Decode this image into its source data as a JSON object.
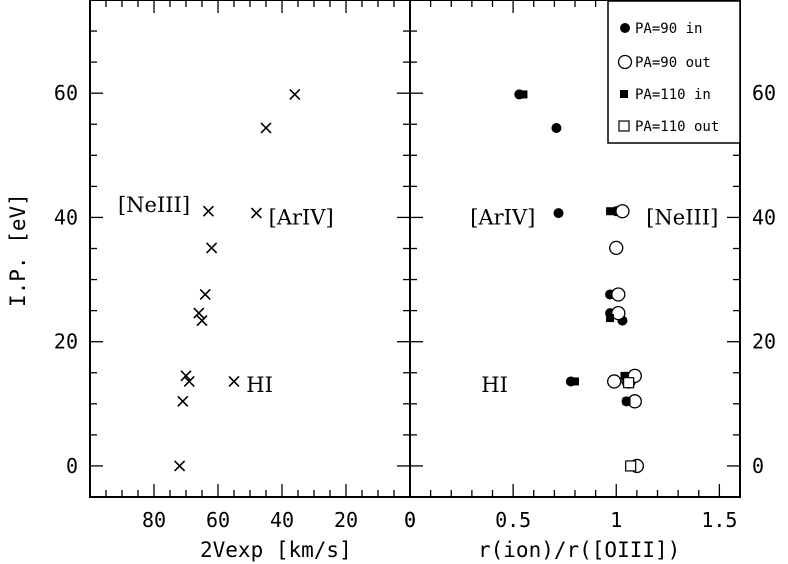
{
  "chart_data": [
    {
      "type": "scatter",
      "xlabel": "2Vexp [km/s]",
      "ylabel": "I.P. [eV]",
      "xlim": [
        100,
        0
      ],
      "ylim": [
        -5,
        75
      ],
      "x_ticks": [
        "80",
        "60",
        "40",
        "20",
        "0"
      ],
      "y_ticks": [
        "0",
        "20",
        "40",
        "60"
      ],
      "marker": "cross",
      "points": [
        {
          "x": 36,
          "y": 59.8
        },
        {
          "x": 45,
          "y": 54.4
        },
        {
          "x": 48,
          "y": 40.7
        },
        {
          "x": 63,
          "y": 41.0
        },
        {
          "x": 62,
          "y": 35.1
        },
        {
          "x": 64,
          "y": 27.6
        },
        {
          "x": 66,
          "y": 24.6
        },
        {
          "x": 65,
          "y": 23.4
        },
        {
          "x": 55,
          "y": 13.6
        },
        {
          "x": 70,
          "y": 14.5
        },
        {
          "x": 69,
          "y": 13.6
        },
        {
          "x": 71,
          "y": 10.4
        },
        {
          "x": 72,
          "y": 0.0
        }
      ],
      "annotations": [
        {
          "text": "[NeIII]",
          "x": 80,
          "y": 42
        },
        {
          "text": "[ArIV]",
          "x": 34,
          "y": 40
        },
        {
          "text": "HI",
          "x": 47,
          "y": 13
        }
      ]
    },
    {
      "type": "scatter",
      "xlabel": "r(ion)/r([OIII])",
      "ylabel": "",
      "xlim": [
        0.0,
        1.6
      ],
      "ylim": [
        -5,
        75
      ],
      "x_ticks": [
        "0",
        "0.5",
        "1",
        "1.5"
      ],
      "y_ticks": [
        "0",
        "20",
        "40",
        "60"
      ],
      "legend": {
        "position": "top-right",
        "entries": [
          "PA=90 in",
          "PA=90 out",
          "PA=110 in",
          "PA=110 out"
        ]
      },
      "series": [
        {
          "name": "PA=90 in",
          "marker": "filled-circle",
          "points": [
            {
              "x": 0.53,
              "y": 59.8
            },
            {
              "x": 0.71,
              "y": 54.4
            },
            {
              "x": 0.72,
              "y": 40.7
            },
            {
              "x": 1.0,
              "y": 41.0
            },
            {
              "x": 0.99,
              "y": 35.1
            },
            {
              "x": 0.97,
              "y": 27.6
            },
            {
              "x": 0.97,
              "y": 24.6
            },
            {
              "x": 1.03,
              "y": 23.4
            },
            {
              "x": 0.78,
              "y": 13.6
            },
            {
              "x": 1.05,
              "y": 10.4
            }
          ]
        },
        {
          "name": "PA=90 out",
          "marker": "open-circle",
          "points": [
            {
              "x": 1.03,
              "y": 41.0
            },
            {
              "x": 1.0,
              "y": 35.1
            },
            {
              "x": 1.01,
              "y": 27.6
            },
            {
              "x": 1.01,
              "y": 24.6
            },
            {
              "x": 0.99,
              "y": 13.6
            },
            {
              "x": 1.06,
              "y": 13.6
            },
            {
              "x": 1.09,
              "y": 14.5
            },
            {
              "x": 1.09,
              "y": 10.4
            },
            {
              "x": 1.1,
              "y": 0.0
            }
          ]
        },
        {
          "name": "PA=110 in",
          "marker": "filled-square",
          "points": [
            {
              "x": 0.55,
              "y": 59.8
            },
            {
              "x": 0.97,
              "y": 41.0
            },
            {
              "x": 0.8,
              "y": 13.6
            },
            {
              "x": 0.97,
              "y": 23.8
            },
            {
              "x": 1.04,
              "y": 14.5
            },
            {
              "x": 1.05,
              "y": 10.4
            }
          ]
        },
        {
          "name": "PA=110 out",
          "marker": "open-square",
          "points": [
            {
              "x": 1.06,
              "y": 13.4
            },
            {
              "x": 1.07,
              "y": 0.0
            }
          ]
        }
      ],
      "annotations": [
        {
          "text": "[ArIV]",
          "x": 0.45,
          "y": 40
        },
        {
          "text": "[NeIII]",
          "x": 1.32,
          "y": 40
        },
        {
          "text": "HI",
          "x": 0.41,
          "y": 13
        }
      ]
    }
  ]
}
